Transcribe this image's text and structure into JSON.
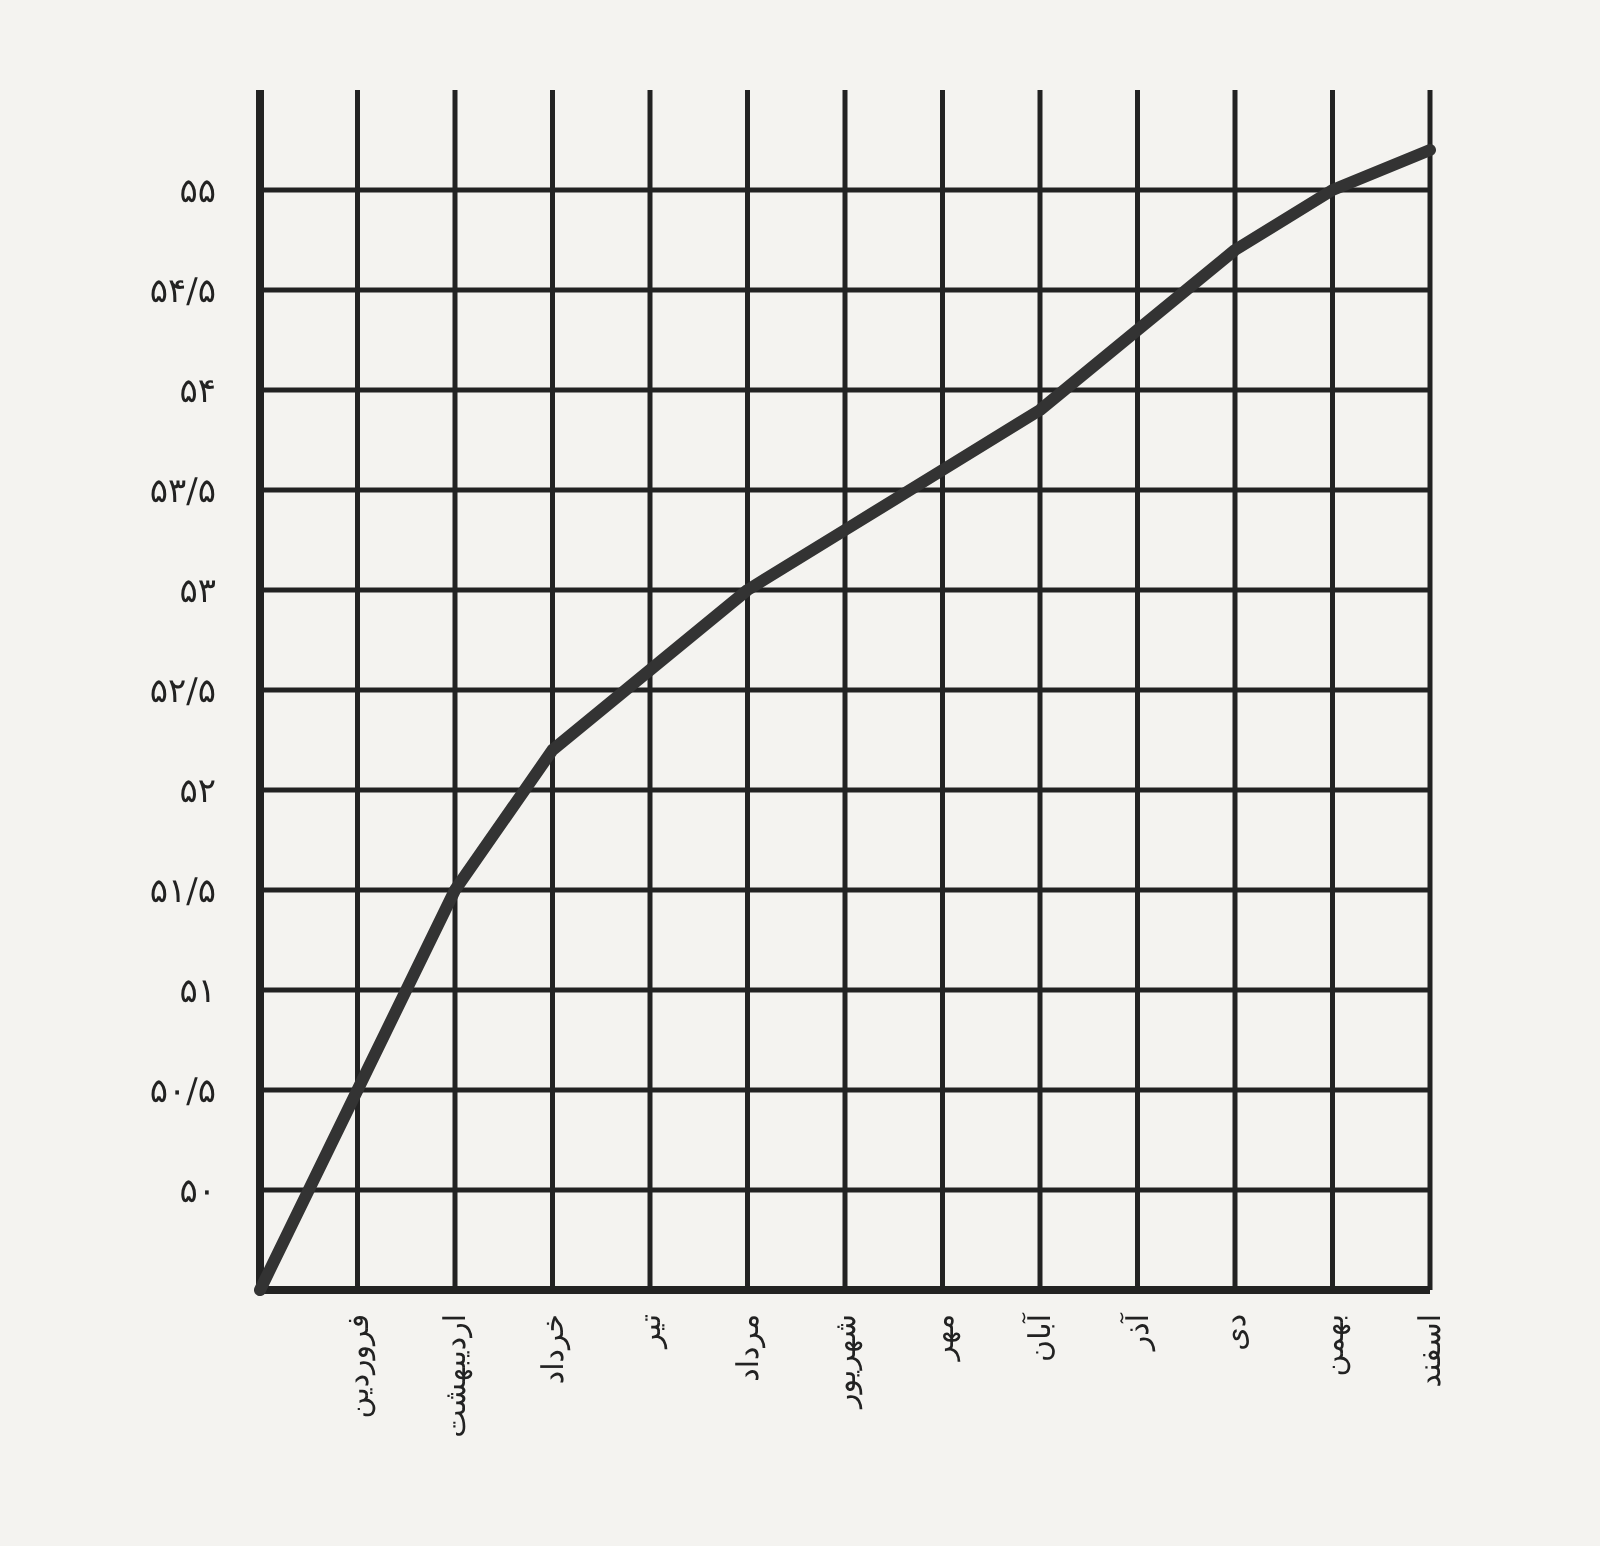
{
  "chart_data": {
    "type": "line",
    "categories": [
      null,
      "فروردین",
      "اردیبهشت",
      "خرداد",
      "تیر",
      "مرداد",
      "شهریور",
      "مهر",
      "آبان",
      "آذر",
      "دی",
      "بهمن",
      "اسفند"
    ],
    "values": [
      49.5,
      50.5,
      51.5,
      52.2,
      52.6,
      53.0,
      53.3,
      53.6,
      53.9,
      54.3,
      54.7,
      55.0,
      55.2
    ],
    "color": "#333333",
    "ylim": [
      49.5,
      55.5
    ],
    "yticks": [
      {
        "value": 49.5,
        "label": null
      },
      {
        "value": 50,
        "label": "۵۰"
      },
      {
        "value": 50.5,
        "label": "۵۰/۵"
      },
      {
        "value": 51,
        "label": "۵۱"
      },
      {
        "value": 51.5,
        "label": "۵۱/۵"
      },
      {
        "value": 52,
        "label": "۵۲"
      },
      {
        "value": 52.5,
        "label": "۵۲/۵"
      },
      {
        "value": 53,
        "label": "۵۳"
      },
      {
        "value": 53.5,
        "label": "۵۳/۵"
      },
      {
        "value": 54,
        "label": "۵۴"
      },
      {
        "value": 54.5,
        "label": "۵۴/۵"
      },
      {
        "value": 55,
        "label": "۵۵"
      }
    ],
    "grid": true
  }
}
